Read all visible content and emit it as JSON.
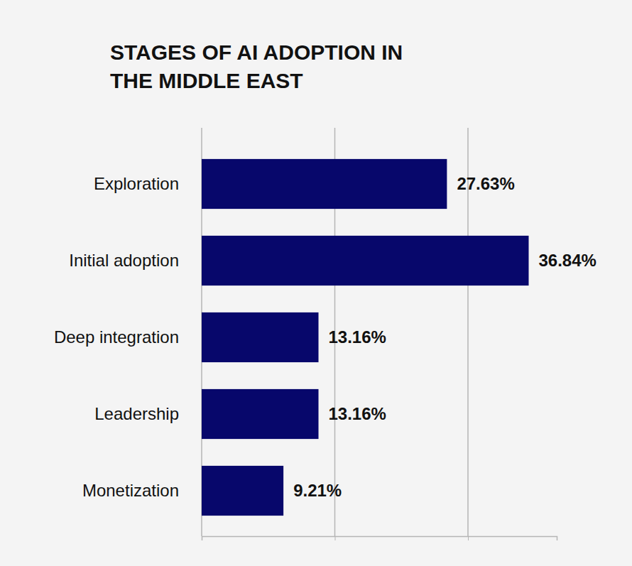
{
  "chart_data": {
    "type": "bar",
    "title": "STAGES OF AI ADOPTION IN THE MIDDLE EAST",
    "orientation": "horizontal",
    "categories": [
      "Exploration",
      "Initial adoption",
      "Deep integration",
      "Leadership",
      "Monetization"
    ],
    "values": [
      27.63,
      36.84,
      13.16,
      13.16,
      9.21
    ],
    "value_labels": [
      "27.63%",
      "36.84%",
      "13.16%",
      "13.16%",
      "9.21%"
    ],
    "color": "#07076b",
    "xlim": [
      0,
      40
    ],
    "xticks": [
      0,
      15,
      30
    ],
    "grid": true,
    "tick_labels": "y",
    "data_labels": true
  }
}
